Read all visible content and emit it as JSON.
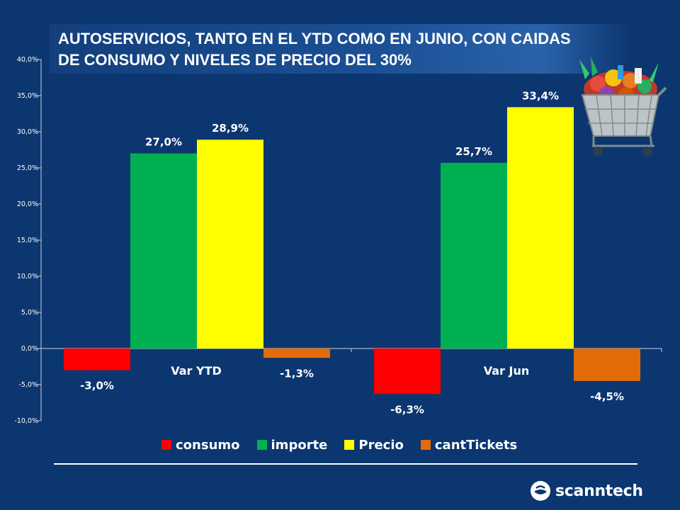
{
  "title": "AUTOSERVICIOS, TANTO EN EL YTD COMO EN JUNIO,  CON CAIDAS\nDE CONSUMO Y NIVELES DE PRECIO DEL 30%",
  "brand": {
    "name": "scanntech"
  },
  "illustration": {
    "icon": "shopping-cart-icon"
  },
  "chart_data": {
    "type": "bar",
    "categories": [
      "Var YTD",
      "Var Jun"
    ],
    "series": [
      {
        "name": "consumo",
        "color": "#ff0000",
        "values": [
          -3.0,
          -6.3
        ],
        "labels": [
          "-3,0%",
          "-6,3%"
        ]
      },
      {
        "name": "importe",
        "color": "#00b050",
        "values": [
          27.0,
          25.7
        ],
        "labels": [
          "27,0%",
          "25,7%"
        ]
      },
      {
        "name": "Precio",
        "color": "#ffff00",
        "values": [
          28.9,
          33.4
        ],
        "labels": [
          "28,9%",
          "33,4%"
        ]
      },
      {
        "name": "cantTickets",
        "color": "#e36c09",
        "values": [
          -1.3,
          -4.5
        ],
        "labels": [
          "-1,3%",
          "-4,5%"
        ]
      }
    ],
    "ylim": [
      -10,
      40
    ],
    "yticks": [
      {
        "value": 40,
        "label": "40,0%"
      },
      {
        "value": 35,
        "label": "35,0%"
      },
      {
        "value": 30,
        "label": "30,0%"
      },
      {
        "value": 25,
        "label": "25,0%"
      },
      {
        "value": 20,
        "label": "20,0%"
      },
      {
        "value": 15,
        "label": "15,0%"
      },
      {
        "value": 10,
        "label": "10,0%"
      },
      {
        "value": 5,
        "label": "5,0%"
      },
      {
        "value": 0,
        "label": "0,0%"
      },
      {
        "value": -5,
        "label": "-5,0%"
      },
      {
        "value": -10,
        "label": "-10,0%"
      }
    ],
    "grid": false,
    "legend_position": "bottom"
  }
}
